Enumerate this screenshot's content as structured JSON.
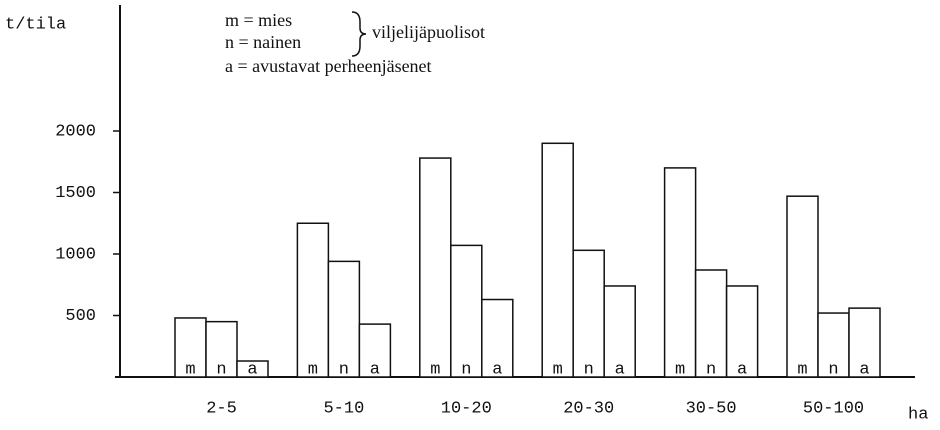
{
  "chart_data": {
    "type": "bar",
    "y_label": "t/tila",
    "x_label": "ha",
    "legend_lines": [
      "m = mies",
      "n = nainen",
      "a = avustavat perheenjäsenet"
    ],
    "legend_group_label": "viljelijäpuolisot",
    "categories": [
      "2-5",
      "5-10",
      "10-20",
      "20-30",
      "30-50",
      "50-100"
    ],
    "series": [
      {
        "name": "m",
        "color": "#ffffff",
        "values": [
          480,
          1250,
          1780,
          1900,
          1700,
          1470
        ]
      },
      {
        "name": "n",
        "color": "#ffffff",
        "values": [
          450,
          940,
          1070,
          1030,
          870,
          520
        ]
      },
      {
        "name": "a",
        "color": "#ffffff",
        "values": [
          130,
          430,
          630,
          740,
          740,
          560
        ]
      }
    ],
    "ylim": [
      0,
      3000
    ],
    "yticks": [
      500,
      1000,
      1500,
      2000
    ],
    "grid": false
  }
}
